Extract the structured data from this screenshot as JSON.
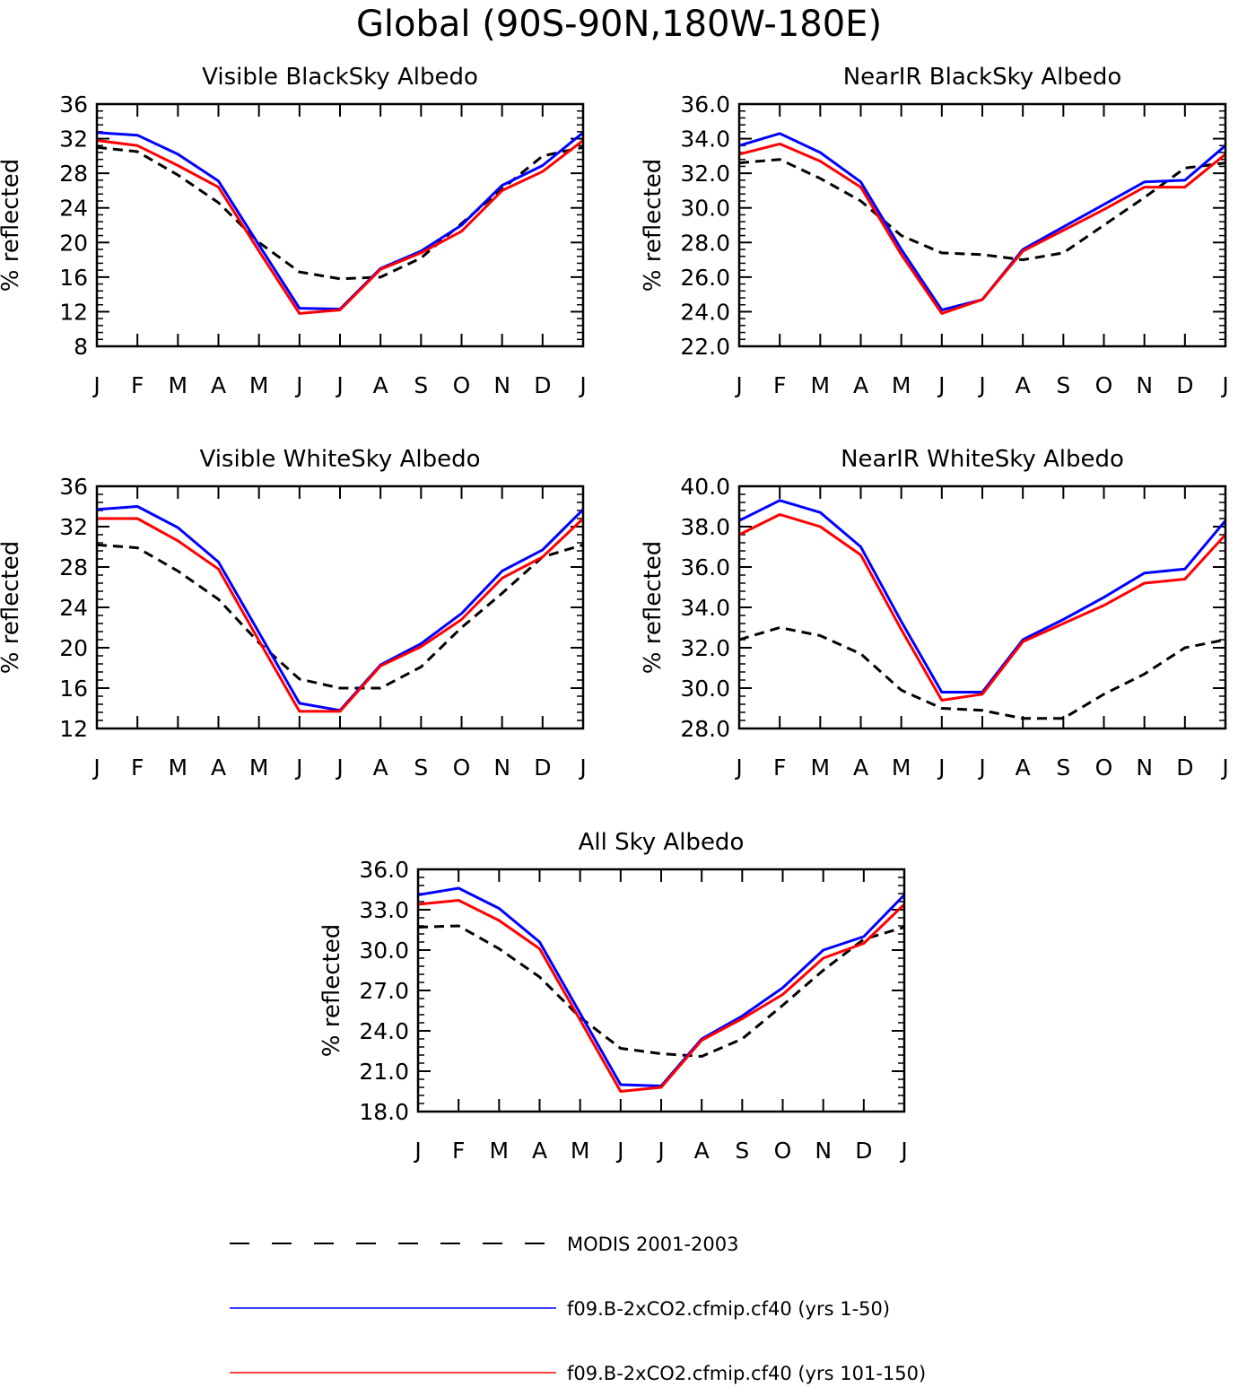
{
  "figure_title": "Global (90S-90N,180W-180E)",
  "colors": {
    "modis": "#000000",
    "run1": "#0000ff",
    "run2": "#ff0000",
    "axis": "#000000"
  },
  "legend": [
    {
      "label": "MODIS 2001-2003",
      "style": "dashed",
      "color": "#000000"
    },
    {
      "label": "f09.B-2xCO2.cfmip.cf40 (yrs 1-50)",
      "style": "solid",
      "color": "#0000ff"
    },
    {
      "label": "f09.B-2xCO2.cfmip.cf40 (yrs 101-150)",
      "style": "solid",
      "color": "#ff0000"
    }
  ],
  "chart_data": [
    {
      "type": "line",
      "title": "Visible BlackSky Albedo",
      "ylabel": "% reflected",
      "categories": [
        "J",
        "F",
        "M",
        "A",
        "M",
        "J",
        "J",
        "A",
        "S",
        "O",
        "N",
        "D",
        "J"
      ],
      "ylim": [
        8,
        36
      ],
      "yticks": [
        "8",
        "12",
        "16",
        "20",
        "24",
        "28",
        "32",
        "36"
      ],
      "series": [
        {
          "name": "MODIS 2001-2003",
          "style": "dashed",
          "values": [
            31.0,
            30.5,
            27.8,
            24.6,
            20.0,
            16.6,
            15.8,
            16.0,
            18.2,
            22.2,
            26.2,
            30.0,
            31.0
          ]
        },
        {
          "name": "f09.B-2xCO2.cfmip.cf40 (yrs 1-50)",
          "style": "solid",
          "values": [
            32.7,
            32.4,
            30.2,
            27.1,
            19.7,
            12.4,
            12.3,
            17.0,
            19.0,
            22.0,
            26.6,
            28.9,
            32.7
          ]
        },
        {
          "name": "f09.B-2xCO2.cfmip.cf40 (yrs 101-150)",
          "style": "solid",
          "values": [
            31.8,
            31.2,
            28.9,
            26.4,
            19.0,
            11.8,
            12.2,
            16.9,
            18.8,
            21.3,
            26.0,
            28.2,
            31.8
          ]
        }
      ]
    },
    {
      "type": "line",
      "title": "NearIR BlackSky Albedo",
      "ylabel": "% reflected",
      "categories": [
        "J",
        "F",
        "M",
        "A",
        "M",
        "J",
        "J",
        "A",
        "S",
        "O",
        "N",
        "D",
        "J"
      ],
      "ylim": [
        22,
        36
      ],
      "yticks": [
        "22.0",
        "24.0",
        "26.0",
        "28.0",
        "30.0",
        "32.0",
        "34.0",
        "36.0"
      ],
      "series": [
        {
          "name": "MODIS 2001-2003",
          "style": "dashed",
          "values": [
            32.6,
            32.8,
            31.7,
            30.4,
            28.4,
            27.4,
            27.3,
            27.0,
            27.4,
            29.0,
            30.6,
            32.3,
            32.6
          ]
        },
        {
          "name": "f09.B-2xCO2.cfmip.cf40 (yrs 1-50)",
          "style": "solid",
          "values": [
            33.6,
            34.3,
            33.2,
            31.5,
            27.6,
            24.1,
            24.7,
            27.6,
            28.9,
            30.2,
            31.5,
            31.6,
            33.6
          ]
        },
        {
          "name": "f09.B-2xCO2.cfmip.cf40 (yrs 101-150)",
          "style": "solid",
          "values": [
            33.1,
            33.7,
            32.7,
            31.2,
            27.3,
            23.9,
            24.7,
            27.5,
            28.7,
            29.9,
            31.2,
            31.2,
            33.1
          ]
        }
      ]
    },
    {
      "type": "line",
      "title": "Visible WhiteSky Albedo",
      "ylabel": "% reflected",
      "categories": [
        "J",
        "F",
        "M",
        "A",
        "M",
        "J",
        "J",
        "A",
        "S",
        "O",
        "N",
        "D",
        "J"
      ],
      "ylim": [
        12,
        36
      ],
      "yticks": [
        "12",
        "16",
        "20",
        "24",
        "28",
        "32",
        "36"
      ],
      "series": [
        {
          "name": "MODIS 2001-2003",
          "style": "dashed",
          "values": [
            30.2,
            29.9,
            27.6,
            24.8,
            20.5,
            16.9,
            16.0,
            16.0,
            18.1,
            22.0,
            25.4,
            29.0,
            30.2
          ]
        },
        {
          "name": "f09.B-2xCO2.cfmip.cf40 (yrs 1-50)",
          "style": "solid",
          "values": [
            33.7,
            34.0,
            31.9,
            28.5,
            21.5,
            14.5,
            13.8,
            18.3,
            20.4,
            23.4,
            27.6,
            29.7,
            33.7
          ]
        },
        {
          "name": "f09.B-2xCO2.cfmip.cf40 (yrs 101-150)",
          "style": "solid",
          "values": [
            32.8,
            32.8,
            30.6,
            27.8,
            20.7,
            13.7,
            13.7,
            18.2,
            20.1,
            22.8,
            26.9,
            29.0,
            32.8
          ]
        }
      ]
    },
    {
      "type": "line",
      "title": "NearIR WhiteSky Albedo",
      "ylabel": "% reflected",
      "categories": [
        "J",
        "F",
        "M",
        "A",
        "M",
        "J",
        "J",
        "A",
        "S",
        "O",
        "N",
        "D",
        "J"
      ],
      "ylim": [
        28,
        40
      ],
      "yticks": [
        "28.0",
        "30.0",
        "32.0",
        "34.0",
        "36.0",
        "38.0",
        "40.0"
      ],
      "series": [
        {
          "name": "MODIS 2001-2003",
          "style": "dashed",
          "values": [
            32.4,
            33.0,
            32.6,
            31.7,
            29.9,
            29.0,
            28.9,
            28.5,
            28.5,
            29.7,
            30.7,
            32.0,
            32.4
          ]
        },
        {
          "name": "f09.B-2xCO2.cfmip.cf40 (yrs 1-50)",
          "style": "solid",
          "values": [
            38.3,
            39.3,
            38.7,
            37.0,
            33.3,
            29.8,
            29.8,
            32.4,
            33.4,
            34.5,
            35.7,
            35.9,
            38.3
          ]
        },
        {
          "name": "f09.B-2xCO2.cfmip.cf40 (yrs 101-150)",
          "style": "solid",
          "values": [
            37.6,
            38.6,
            38.0,
            36.6,
            32.9,
            29.4,
            29.7,
            32.3,
            33.2,
            34.1,
            35.2,
            35.4,
            37.6
          ]
        }
      ]
    },
    {
      "type": "line",
      "title": "All Sky Albedo",
      "ylabel": "% reflected",
      "categories": [
        "J",
        "F",
        "M",
        "A",
        "M",
        "J",
        "J",
        "A",
        "S",
        "O",
        "N",
        "D",
        "J"
      ],
      "ylim": [
        18,
        36
      ],
      "yticks": [
        "18.0",
        "21.0",
        "24.0",
        "27.0",
        "30.0",
        "33.0",
        "36.0"
      ],
      "series": [
        {
          "name": "MODIS 2001-2003",
          "style": "dashed",
          "values": [
            31.7,
            31.8,
            30.1,
            28.0,
            25.0,
            22.7,
            22.3,
            22.1,
            23.4,
            25.9,
            28.5,
            30.8,
            31.7
          ]
        },
        {
          "name": "f09.B-2xCO2.cfmip.cf40 (yrs 1-50)",
          "style": "solid",
          "values": [
            34.1,
            34.6,
            33.1,
            30.6,
            25.3,
            20.0,
            19.9,
            23.4,
            25.1,
            27.2,
            30.0,
            31.0,
            34.1
          ]
        },
        {
          "name": "f09.B-2xCO2.cfmip.cf40 (yrs 101-150)",
          "style": "solid",
          "values": [
            33.4,
            33.7,
            32.2,
            30.1,
            24.8,
            19.5,
            19.8,
            23.3,
            24.9,
            26.7,
            29.4,
            30.5,
            33.4
          ]
        }
      ]
    }
  ]
}
